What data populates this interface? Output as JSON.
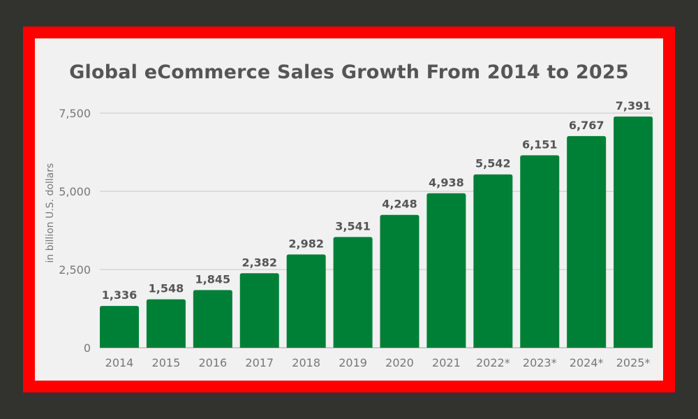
{
  "chart_data": {
    "type": "bar",
    "title": "Global eCommerce Sales Growth From 2014 to 2025",
    "xlabel": "",
    "ylabel": "in billion U.S. dollars",
    "categories": [
      "2014",
      "2015",
      "2016",
      "2017",
      "2018",
      "2019",
      "2020",
      "2021",
      "2022*",
      "2023*",
      "2024*",
      "2025*"
    ],
    "values": [
      1336,
      1548,
      1845,
      2382,
      2982,
      3541,
      4248,
      4938,
      5542,
      6151,
      6767,
      7391
    ],
    "data_labels": [
      "1,336",
      "1,548",
      "1,845",
      "2,382",
      "2,982",
      "3,541",
      "4,248",
      "4,938",
      "5,542",
      "6,151",
      "6,767",
      "7,391"
    ],
    "ylim": [
      0,
      7500
    ],
    "yticks": [
      0,
      2500,
      5000,
      7500
    ],
    "ytick_labels": [
      "0",
      "2,500",
      "5,000",
      "7,500"
    ],
    "grid": true,
    "colors": {
      "bar": "#008037",
      "frame": "#ff0000",
      "background": "#f1f1f1",
      "outer": "#32332f"
    }
  }
}
